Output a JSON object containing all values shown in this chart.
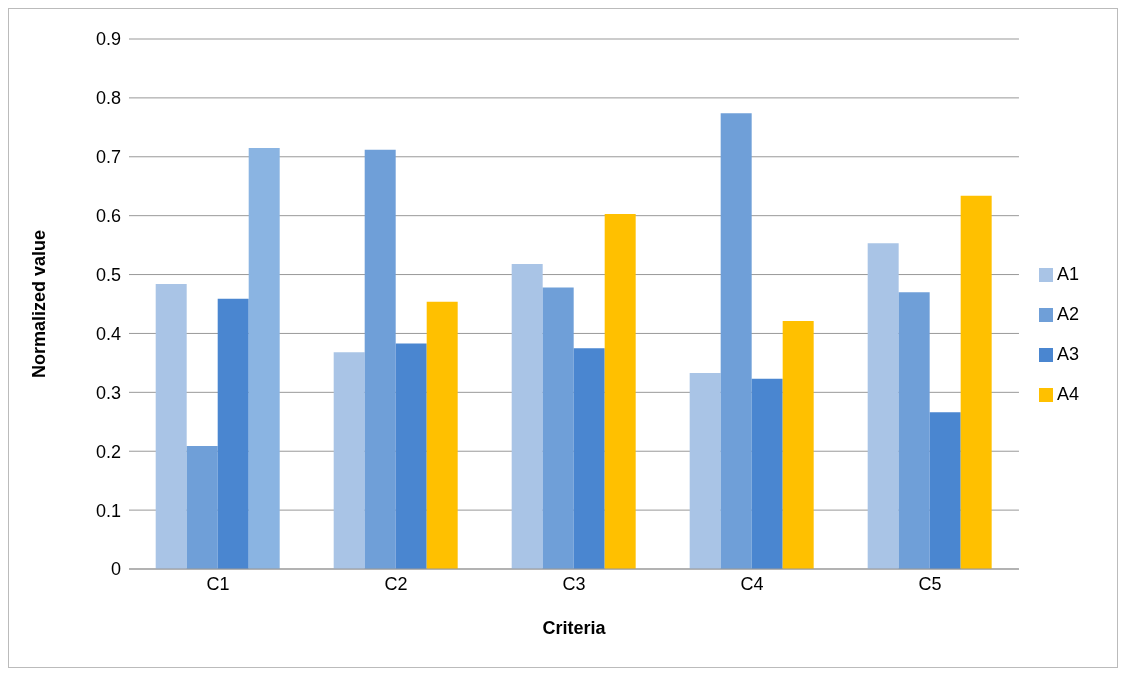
{
  "chart_data": {
    "type": "bar",
    "xlabel": "Criteria",
    "ylabel": "Normalized value",
    "categories": [
      "C1",
      "C2",
      "C3",
      "C4",
      "C5"
    ],
    "series": [
      {
        "name": "A1",
        "color": "#a9c4e6",
        "values": [
          0.484,
          0.368,
          0.518,
          0.333,
          0.553
        ]
      },
      {
        "name": "A2",
        "color": "#6f9fd8",
        "values": [
          0.209,
          0.712,
          0.478,
          0.774,
          0.47
        ]
      },
      {
        "name": "A3",
        "color": "#4a86d0",
        "values": [
          0.459,
          0.383,
          0.375,
          0.323,
          0.266
        ]
      },
      {
        "name": "A4",
        "color": "#ffc000",
        "colors": [
          "#8ab4e2",
          "#ffc000",
          "#ffc000",
          "#ffc000",
          "#ffc000"
        ],
        "values": [
          0.715,
          0.454,
          0.603,
          0.421,
          0.634
        ]
      }
    ],
    "ylim": [
      0,
      0.9
    ],
    "yticks": [
      0,
      0.1,
      0.2,
      0.3,
      0.4,
      0.5,
      0.6,
      0.7,
      0.8,
      0.9
    ],
    "grid": "y",
    "legend": "right"
  }
}
